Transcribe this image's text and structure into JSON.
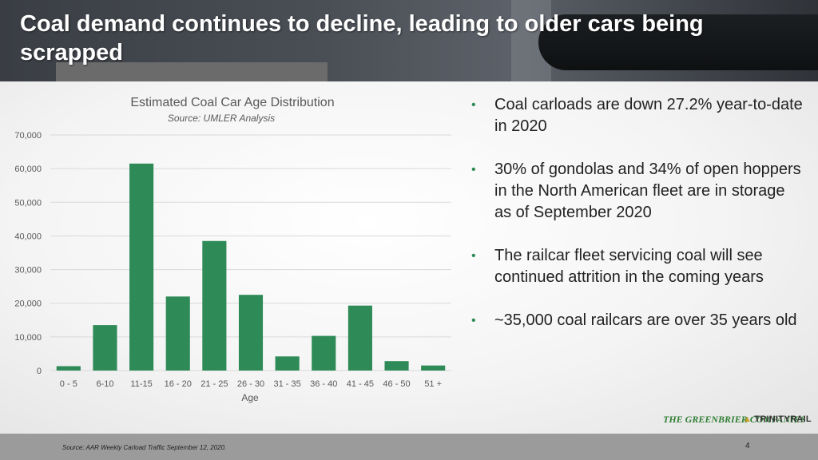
{
  "slide": {
    "title": "Coal demand continues to decline, leading to older cars being scrapped",
    "page_number": "4",
    "footer_source": "Source: AAR Weekly Carload Traffic September 12, 2020.",
    "logos": {
      "greenbrier": "THE GREENBRIER COMPANIES",
      "trinity": "TRINITYRAIL"
    }
  },
  "bullets": [
    "Coal carloads are down 27.2% year-to-date in 2020",
    "30% of gondolas and 34% of open hoppers in the North American fleet are in storage as of September 2020",
    "The railcar fleet servicing coal will see continued attrition in the coming years",
    "~35,000 coal railcars are over 35 years old"
  ],
  "colors": {
    "bar": "#2e8b57",
    "bullet": "#2e8b57",
    "grid": "#d9d9d9"
  },
  "chart_data": {
    "type": "bar",
    "title": "Estimated Coal Car Age Distribution",
    "subtitle": "Source: UMLER Analysis",
    "xlabel": "Age",
    "ylabel": "",
    "categories": [
      "0 - 5",
      "6-10",
      "11-15",
      "16 - 20",
      "21 - 25",
      "26 - 30",
      "31 - 35",
      "36 - 40",
      "41 - 45",
      "46 - 50",
      "51 +"
    ],
    "values": [
      1300,
      13500,
      61500,
      22000,
      38500,
      22500,
      4200,
      10300,
      19300,
      2800,
      1500
    ],
    "ylim": [
      0,
      70000
    ],
    "yticks": [
      0,
      10000,
      20000,
      30000,
      40000,
      50000,
      60000,
      70000
    ],
    "ytick_labels": [
      "0",
      "10,000",
      "20,000",
      "30,000",
      "40,000",
      "50,000",
      "60,000",
      "70,000"
    ],
    "grid": true,
    "legend": "none"
  }
}
